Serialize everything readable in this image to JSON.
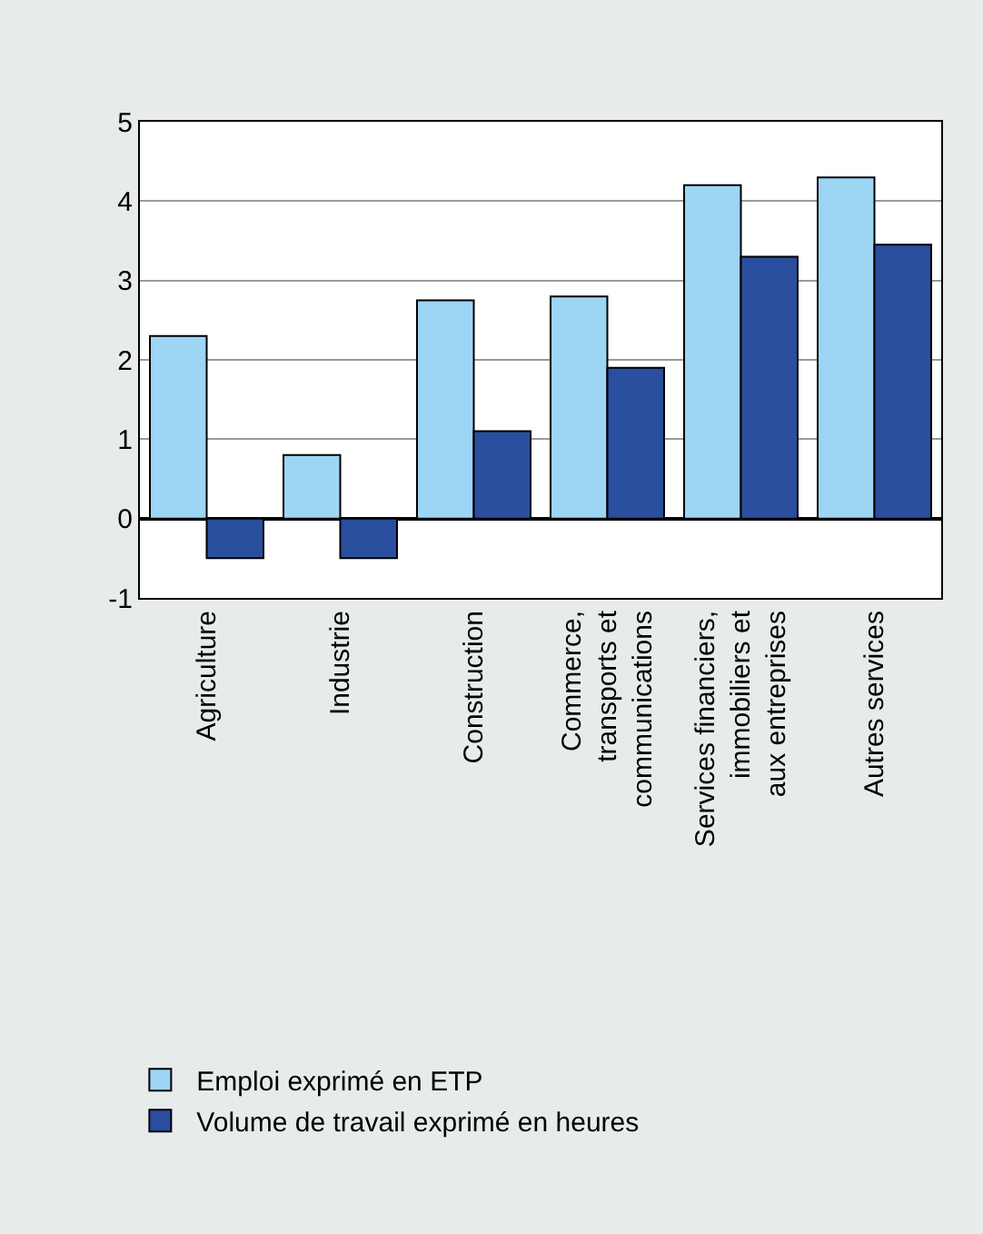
{
  "chart_data": {
    "type": "bar",
    "categories": [
      "Agriculture",
      "Industrie",
      "Construction",
      "Commerce,\ntransports et\ncommunications",
      "Services financiers,\nimmobiliers et\naux entreprises",
      "Autres services"
    ],
    "series": [
      {
        "name": "Emploi exprimé en ETP",
        "color": "#9dd5f5",
        "values": [
          2.3,
          0.8,
          2.75,
          2.8,
          4.2,
          4.3
        ]
      },
      {
        "name": "Volume de travail exprimé en heures",
        "color": "#2a4f9e",
        "values": [
          -0.5,
          -0.5,
          1.1,
          1.9,
          3.3,
          3.45
        ]
      }
    ],
    "ylim": [
      -1,
      5
    ],
    "yticks": [
      -1,
      0,
      1,
      2,
      3,
      4,
      5
    ],
    "grid": "y",
    "legend": "bottom"
  }
}
